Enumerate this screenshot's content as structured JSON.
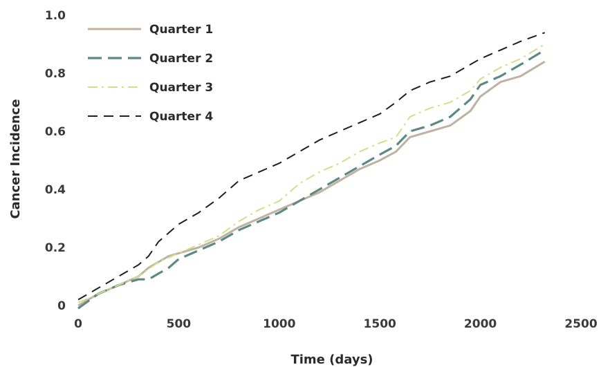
{
  "chart_data": {
    "type": "line",
    "xlabel": "Time (days)",
    "ylabel": "Cancer Incidence",
    "xlim": [
      0,
      2500
    ],
    "ylim": [
      0,
      1.0
    ],
    "xticks": [
      0,
      500,
      1000,
      1500,
      2000,
      2500
    ],
    "xtick_labels": [
      "0",
      "500",
      "1000",
      "1500",
      "2000",
      "2500"
    ],
    "yticks": [
      0,
      0.2,
      0.4,
      0.6,
      0.8,
      1.0
    ],
    "ytick_labels": [
      "0",
      "0.2",
      "0.4",
      "0.6",
      "0.8",
      "1.0"
    ],
    "grid": false,
    "legend": "top-left",
    "series": [
      {
        "name": "Quarter 1",
        "color": "#bfb3a0",
        "dash": "solid",
        "x": [
          0,
          100,
          200,
          300,
          350,
          400,
          450,
          500,
          600,
          700,
          800,
          900,
          1000,
          1100,
          1200,
          1300,
          1400,
          1500,
          1580,
          1650,
          1750,
          1850,
          1950,
          2000,
          2100,
          2200,
          2320
        ],
        "y": [
          0.0,
          0.04,
          0.07,
          0.1,
          0.13,
          0.15,
          0.17,
          0.18,
          0.2,
          0.23,
          0.27,
          0.3,
          0.33,
          0.36,
          0.39,
          0.43,
          0.47,
          0.5,
          0.53,
          0.58,
          0.6,
          0.62,
          0.67,
          0.72,
          0.77,
          0.79,
          0.84
        ]
      },
      {
        "name": "Quarter 2",
        "color": "#5c8a83",
        "dash": "longdash",
        "x": [
          0,
          100,
          200,
          300,
          350,
          400,
          450,
          500,
          600,
          700,
          800,
          900,
          1000,
          1100,
          1200,
          1300,
          1400,
          1500,
          1580,
          1650,
          1750,
          1850,
          1950,
          2000,
          2100,
          2200,
          2320
        ],
        "y": [
          -0.01,
          0.04,
          0.07,
          0.09,
          0.09,
          0.11,
          0.13,
          0.16,
          0.19,
          0.22,
          0.26,
          0.29,
          0.32,
          0.36,
          0.4,
          0.44,
          0.48,
          0.52,
          0.55,
          0.6,
          0.62,
          0.65,
          0.71,
          0.76,
          0.79,
          0.83,
          0.88
        ]
      },
      {
        "name": "Quarter 3",
        "color": "#cfe08a",
        "dash": "dashdot",
        "x": [
          0,
          100,
          200,
          300,
          400,
          500,
          600,
          700,
          800,
          900,
          1000,
          1100,
          1200,
          1300,
          1400,
          1500,
          1580,
          1650,
          1750,
          1850,
          1950,
          2000,
          2100,
          2200,
          2320
        ],
        "y": [
          0.01,
          0.04,
          0.07,
          0.1,
          0.15,
          0.18,
          0.21,
          0.24,
          0.29,
          0.33,
          0.36,
          0.42,
          0.46,
          0.49,
          0.53,
          0.56,
          0.58,
          0.65,
          0.68,
          0.7,
          0.74,
          0.78,
          0.82,
          0.85,
          0.9
        ]
      },
      {
        "name": "Quarter 4",
        "color": "#1f1f1f",
        "dash": "dash",
        "x": [
          0,
          100,
          200,
          300,
          350,
          400,
          500,
          600,
          700,
          800,
          900,
          1000,
          1100,
          1200,
          1300,
          1400,
          1500,
          1580,
          1650,
          1750,
          1850,
          1950,
          2000,
          2100,
          2200,
          2320
        ],
        "y": [
          0.02,
          0.06,
          0.1,
          0.14,
          0.17,
          0.22,
          0.28,
          0.32,
          0.37,
          0.43,
          0.46,
          0.49,
          0.53,
          0.57,
          0.6,
          0.63,
          0.66,
          0.7,
          0.74,
          0.77,
          0.79,
          0.83,
          0.85,
          0.88,
          0.91,
          0.94
        ]
      }
    ]
  }
}
